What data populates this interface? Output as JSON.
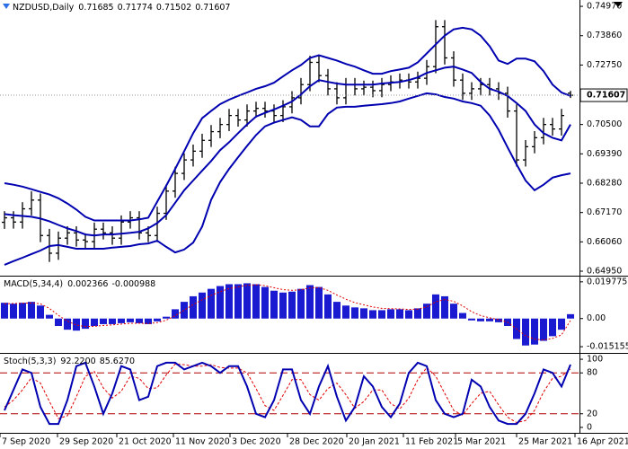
{
  "chart_data": [
    {
      "type": "ohlc",
      "title": "NZDUSD,Daily",
      "open": [
        0.668,
        0.6697,
        0.6681,
        0.6731,
        0.6764,
        0.663,
        0.6563,
        0.662,
        0.664,
        0.6613,
        0.6607,
        0.6654,
        0.664,
        0.662,
        0.6681,
        0.6697,
        0.664,
        0.663,
        0.6714,
        0.6798,
        0.6865,
        0.6916,
        0.6949,
        0.699,
        0.7023,
        0.705,
        0.7084,
        0.7067,
        0.7101,
        0.7111,
        0.7101,
        0.7084,
        0.7117,
        0.7151,
        0.7201,
        0.7285,
        0.7235,
        0.7185,
        0.7151,
        0.7201,
        0.7185,
        0.7191,
        0.7178,
        0.7201,
        0.7211,
        0.7218,
        0.7211,
        0.7225,
        0.7269,
        0.742,
        0.7302,
        0.7218,
        0.7168,
        0.7185,
        0.7201,
        0.7185,
        0.7168,
        0.7101,
        0.6916,
        0.6966,
        0.7,
        0.705,
        0.7033,
        0.71685
      ],
      "high": [
        0.6722,
        0.6722,
        0.6756,
        0.6797,
        0.6789,
        0.6655,
        0.6645,
        0.6665,
        0.6665,
        0.6638,
        0.6679,
        0.6679,
        0.6665,
        0.6706,
        0.6722,
        0.6722,
        0.6665,
        0.6739,
        0.6823,
        0.689,
        0.6941,
        0.6974,
        0.7015,
        0.7048,
        0.7075,
        0.7109,
        0.7109,
        0.7126,
        0.7136,
        0.7136,
        0.7126,
        0.7142,
        0.7176,
        0.7226,
        0.731,
        0.731,
        0.726,
        0.721,
        0.7226,
        0.7226,
        0.7216,
        0.7216,
        0.7226,
        0.7236,
        0.7243,
        0.7243,
        0.725,
        0.7294,
        0.7445,
        0.7445,
        0.7327,
        0.7243,
        0.721,
        0.7226,
        0.7226,
        0.721,
        0.7193,
        0.7126,
        0.6991,
        0.7025,
        0.7075,
        0.7075,
        0.7109,
        0.71774
      ],
      "low": [
        0.6655,
        0.6656,
        0.6656,
        0.6706,
        0.6605,
        0.653,
        0.6538,
        0.6595,
        0.6588,
        0.6582,
        0.6582,
        0.6615,
        0.6595,
        0.6595,
        0.6656,
        0.6615,
        0.6605,
        0.6605,
        0.6689,
        0.6773,
        0.684,
        0.6891,
        0.6924,
        0.6965,
        0.6998,
        0.7025,
        0.7042,
        0.7042,
        0.7076,
        0.7076,
        0.7059,
        0.7059,
        0.7092,
        0.7126,
        0.7176,
        0.721,
        0.716,
        0.7126,
        0.7126,
        0.716,
        0.716,
        0.7153,
        0.7153,
        0.7176,
        0.7186,
        0.7186,
        0.7186,
        0.72,
        0.7244,
        0.7277,
        0.7193,
        0.7143,
        0.7143,
        0.716,
        0.716,
        0.7143,
        0.7076,
        0.6891,
        0.6891,
        0.6941,
        0.6975,
        0.7008,
        0.7008,
        0.71502
      ],
      "close": [
        0.6697,
        0.6681,
        0.6731,
        0.6764,
        0.663,
        0.6563,
        0.662,
        0.664,
        0.6613,
        0.6607,
        0.6654,
        0.664,
        0.662,
        0.6681,
        0.6697,
        0.664,
        0.663,
        0.6714,
        0.6798,
        0.6865,
        0.6916,
        0.6949,
        0.699,
        0.7023,
        0.705,
        0.7084,
        0.7067,
        0.7101,
        0.7111,
        0.7101,
        0.7084,
        0.7117,
        0.7151,
        0.7201,
        0.7285,
        0.7235,
        0.7185,
        0.7151,
        0.7201,
        0.7185,
        0.7191,
        0.7178,
        0.7201,
        0.7211,
        0.7218,
        0.7211,
        0.7225,
        0.7269,
        0.742,
        0.7302,
        0.7218,
        0.7168,
        0.7185,
        0.7201,
        0.7185,
        0.7168,
        0.7101,
        0.6916,
        0.6966,
        0.7,
        0.705,
        0.7033,
        0.7084,
        0.71607
      ],
      "color": "#000000",
      "bands": {
        "color": "#0000b0",
        "upper": [
          0.6828,
          0.6822,
          0.6815,
          0.6805,
          0.6795,
          0.6785,
          0.6771,
          0.6751,
          0.6728,
          0.6701,
          0.6687,
          0.6687,
          0.6687,
          0.6687,
          0.6687,
          0.6691,
          0.6697,
          0.6758,
          0.6818,
          0.6882,
          0.6949,
          0.7017,
          0.7074,
          0.7101,
          0.7127,
          0.7144,
          0.7158,
          0.7171,
          0.7185,
          0.7195,
          0.7208,
          0.7232,
          0.7255,
          0.7275,
          0.7302,
          0.7312,
          0.7302,
          0.7292,
          0.7279,
          0.7269,
          0.7255,
          0.7242,
          0.7242,
          0.7252,
          0.7258,
          0.7265,
          0.7285,
          0.7319,
          0.7353,
          0.7386,
          0.741,
          0.7416,
          0.741,
          0.7386,
          0.7346,
          0.7292,
          0.7279,
          0.7299,
          0.7299,
          0.7289,
          0.7252,
          0.7201,
          0.7171,
          0.7158
        ],
        "middle": [
          0.6711,
          0.6707,
          0.6704,
          0.6701,
          0.6694,
          0.6684,
          0.667,
          0.6657,
          0.6647,
          0.6634,
          0.663,
          0.6634,
          0.6634,
          0.6637,
          0.664,
          0.6644,
          0.6657,
          0.6677,
          0.6707,
          0.6754,
          0.6801,
          0.6838,
          0.6875,
          0.6912,
          0.6953,
          0.6983,
          0.7017,
          0.705,
          0.708,
          0.7094,
          0.7107,
          0.7121,
          0.7137,
          0.7164,
          0.7195,
          0.7218,
          0.7211,
          0.7205,
          0.7201,
          0.7201,
          0.7201,
          0.7201,
          0.7205,
          0.7208,
          0.7211,
          0.7218,
          0.7228,
          0.7245,
          0.7255,
          0.7265,
          0.7269,
          0.7258,
          0.7245,
          0.7211,
          0.7185,
          0.7174,
          0.7158,
          0.7131,
          0.7101,
          0.705,
          0.7017,
          0.7,
          0.699,
          0.705
        ],
        "lower": [
          0.6519,
          0.6533,
          0.6546,
          0.656,
          0.6573,
          0.659,
          0.6594,
          0.6587,
          0.658,
          0.658,
          0.658,
          0.658,
          0.6584,
          0.6587,
          0.659,
          0.6597,
          0.66,
          0.661,
          0.6587,
          0.6566,
          0.6577,
          0.6603,
          0.6664,
          0.6765,
          0.6832,
          0.6882,
          0.6926,
          0.6969,
          0.701,
          0.7043,
          0.7057,
          0.7067,
          0.7077,
          0.7067,
          0.7043,
          0.7043,
          0.709,
          0.7114,
          0.7117,
          0.7117,
          0.7121,
          0.7124,
          0.7127,
          0.7131,
          0.7137,
          0.7148,
          0.7158,
          0.7168,
          0.7164,
          0.7154,
          0.7148,
          0.7137,
          0.7131,
          0.7121,
          0.7084,
          0.703,
          0.6963,
          0.6899,
          0.6838,
          0.6801,
          0.6822,
          0.6849,
          0.6858,
          0.6865
        ]
      },
      "ylim": [
        0.6478,
        0.7521
      ],
      "yticks": [
        {
          "value": 0.7497,
          "label": "0.74970"
        },
        {
          "value": 0.7386,
          "label": "0.73860"
        },
        {
          "value": 0.7275,
          "label": "0.72750"
        },
        {
          "value": 0.705,
          "label": "0.70500"
        },
        {
          "value": 0.6939,
          "label": "0.69390"
        },
        {
          "value": 0.6828,
          "label": "0.68280"
        },
        {
          "value": 0.6717,
          "label": "0.67170"
        },
        {
          "value": 0.6606,
          "label": "0.66060"
        },
        {
          "value": 0.6495,
          "label": "0.64950"
        }
      ]
    },
    {
      "type": "macd",
      "title": "MACD(5,34,4)",
      "histogram": {
        "color": "#1a1ad0",
        "values": [
          0.0085,
          0.008,
          0.0085,
          0.009,
          0.007,
          0.002,
          -0.004,
          -0.006,
          -0.0065,
          -0.0055,
          -0.004,
          -0.003,
          -0.003,
          -0.0025,
          -0.002,
          -0.0025,
          -0.003,
          -0.0015,
          0.001,
          0.005,
          0.009,
          0.012,
          0.014,
          0.016,
          0.0175,
          0.0185,
          0.0185,
          0.019,
          0.0185,
          0.017,
          0.015,
          0.014,
          0.0145,
          0.016,
          0.018,
          0.017,
          0.013,
          0.009,
          0.007,
          0.006,
          0.0055,
          0.0045,
          0.0045,
          0.005,
          0.005,
          0.0045,
          0.0055,
          0.008,
          0.013,
          0.012,
          0.008,
          0.003,
          -0.001,
          -0.0015,
          -0.0015,
          -0.002,
          -0.004,
          -0.011,
          -0.0145,
          -0.014,
          -0.012,
          -0.0095,
          -0.006,
          0.002366
        ]
      },
      "signal": {
        "color": "#e00000",
        "values": [
          0.008,
          0.0081,
          0.0082,
          0.0085,
          0.0079,
          0.0055,
          0.0017,
          -0.0014,
          -0.0035,
          -0.0043,
          -0.0042,
          -0.0037,
          -0.0034,
          -0.003,
          -0.0026,
          -0.0025,
          -0.0027,
          -0.0022,
          -0.0009,
          0.0015,
          0.0045,
          0.0075,
          0.0101,
          0.0125,
          0.0145,
          0.0161,
          0.0171,
          0.0179,
          0.0182,
          0.0177,
          0.0166,
          0.0156,
          0.0152,
          0.0155,
          0.0165,
          0.0167,
          0.0152,
          0.0127,
          0.0104,
          0.0086,
          0.0074,
          0.0062,
          0.0055,
          0.0053,
          0.0052,
          0.0049,
          0.0051,
          0.0063,
          0.009,
          0.0102,
          0.0093,
          0.0068,
          0.0037,
          0.0016,
          0.0004,
          -0.0006,
          -0.002,
          -0.0056,
          -0.0092,
          -0.0111,
          -0.0115,
          -0.0107,
          -0.0088,
          -0.000988
        ]
      },
      "ylim": [
        -0.0185,
        0.0226
      ],
      "yticks": [
        0.019775,
        {
          "value": 0,
          "label": "0.00"
        },
        -0.015155
      ]
    },
    {
      "type": "stochastic",
      "title": "Stoch(5,3,3)",
      "readout": [
        "92.2200",
        "85.6270"
      ],
      "main": {
        "color": "#0000b0",
        "values": [
          25,
          55,
          85,
          80,
          30,
          5,
          5,
          40,
          90,
          95,
          60,
          20,
          50,
          90,
          85,
          40,
          45,
          90,
          95,
          95,
          85,
          90,
          95,
          90,
          80,
          90,
          90,
          60,
          20,
          15,
          40,
          85,
          85,
          40,
          20,
          60,
          90,
          45,
          10,
          30,
          75,
          60,
          30,
          15,
          35,
          80,
          95,
          90,
          40,
          20,
          15,
          20,
          70,
          60,
          30,
          10,
          5,
          5,
          20,
          50,
          85,
          80,
          60,
          92.22
        ]
      },
      "signal": {
        "color": "#e00000",
        "values": [
          30,
          40,
          55,
          73,
          65,
          38,
          13,
          17,
          45,
          75,
          82,
          58,
          43,
          53,
          75,
          72,
          57,
          58,
          77,
          93,
          92,
          90,
          90,
          92,
          88,
          87,
          87,
          80,
          57,
          32,
          25,
          47,
          70,
          70,
          48,
          40,
          57,
          65,
          48,
          28,
          38,
          55,
          55,
          35,
          27,
          43,
          70,
          88,
          75,
          50,
          25,
          18,
          35,
          50,
          53,
          33,
          15,
          7,
          10,
          25,
          52,
          72,
          75,
          85.627
        ]
      },
      "levels": [
        80,
        20
      ],
      "level_color": "#b00000",
      "ylim": [
        -8,
        108
      ],
      "yticks": [
        100,
        80,
        20,
        0
      ],
      "xlim": [
        0,
        64
      ],
      "xticks": [
        {
          "value": 0,
          "label": "7 Sep 2020"
        },
        {
          "value": 6.4,
          "label": "29 Sep 2020"
        },
        {
          "value": 13,
          "label": "21 Oct 2020"
        },
        {
          "value": 19.3,
          "label": "11 Nov 2020"
        },
        {
          "value": 25.6,
          "label": "3 Dec 2020"
        },
        {
          "value": 32,
          "label": "28 Dec 2020"
        },
        {
          "value": 38.6,
          "label": "20 Jan 2021"
        },
        {
          "value": 44.9,
          "label": "11 Feb 2021"
        },
        {
          "value": 50.7,
          "label": "5 Mar 2021"
        },
        {
          "value": 57.5,
          "label": "25 Mar 2021"
        },
        {
          "value": 64,
          "label": "16 Apr 2021"
        }
      ]
    }
  ]
}
